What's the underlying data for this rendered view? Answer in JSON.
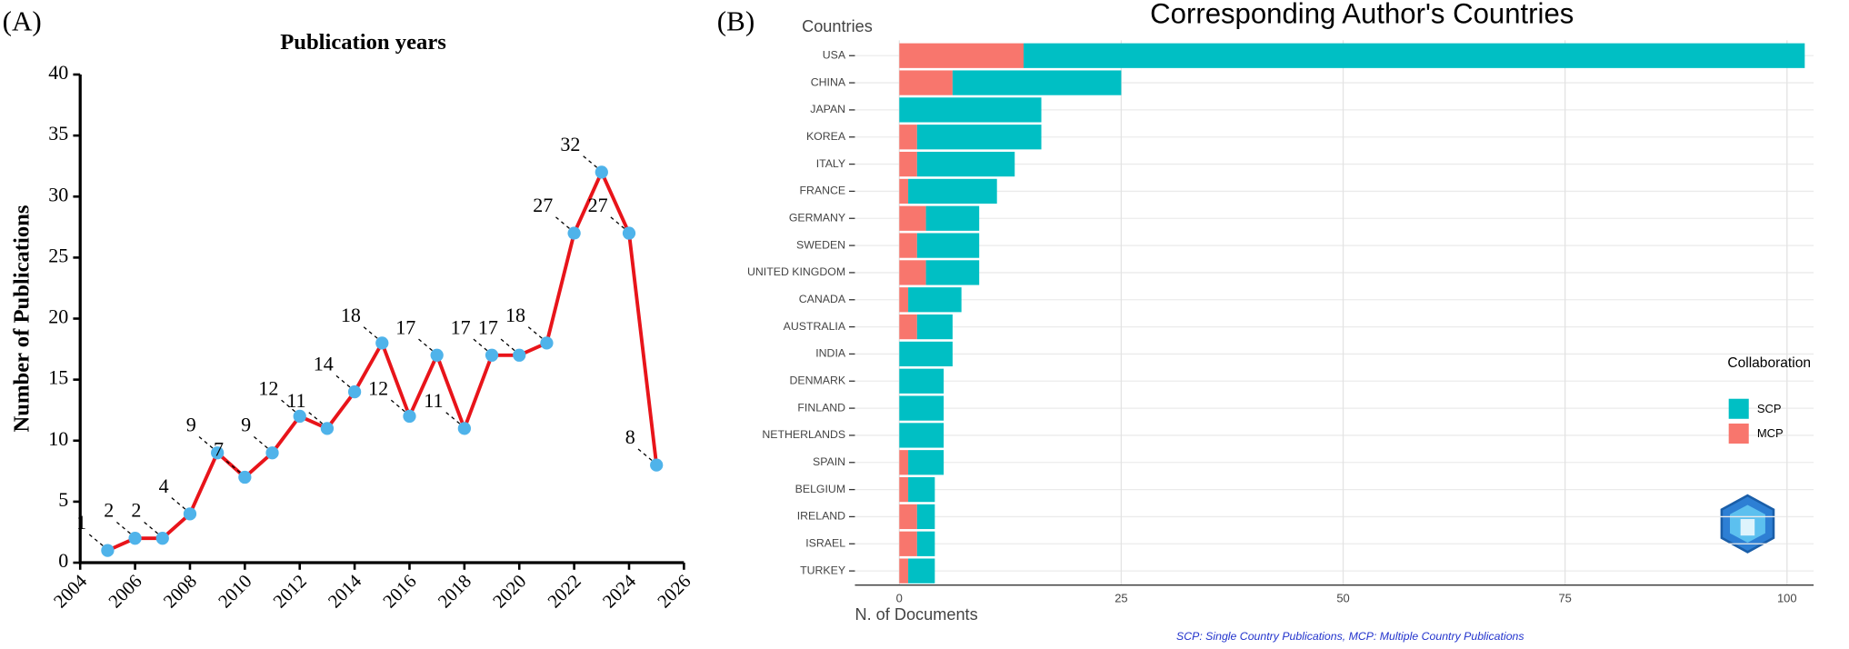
{
  "chart_data": [
    {
      "type": "line",
      "panel_label": "(A)",
      "title": "Publication years",
      "y_label": "Number of Publications",
      "x": [
        2005,
        2006,
        2007,
        2008,
        2009,
        2010,
        2011,
        2012,
        2013,
        2014,
        2015,
        2016,
        2017,
        2018,
        2019,
        2020,
        2021,
        2022,
        2023,
        2024,
        2025
      ],
      "values": [
        1,
        2,
        2,
        4,
        9,
        7,
        9,
        12,
        11,
        14,
        18,
        12,
        17,
        11,
        17,
        17,
        18,
        27,
        32,
        27,
        8
      ],
      "color": "#e8141a",
      "marker_color": "#4fb3ea",
      "xlim": [
        2004,
        2026
      ],
      "xticks": [
        2004,
        2006,
        2008,
        2010,
        2012,
        2014,
        2016,
        2018,
        2020,
        2022,
        2024,
        2026
      ],
      "ylim": [
        0,
        40
      ],
      "yticks": [
        0,
        5,
        10,
        15,
        20,
        25,
        30,
        35,
        40
      ],
      "data_labels": true
    },
    {
      "type": "stacked-barh",
      "panel_label": "(B)",
      "title": "Corresponding Author's Countries",
      "y_label": "Countries",
      "x_label": "N. of Documents",
      "caption": "SCP: Single Country Publications, MCP: Multiple Country Publications",
      "legend_title": "Collaboration",
      "legend_position": "right",
      "categories": [
        "USA",
        "CHINA",
        "JAPAN",
        "KOREA",
        "ITALY",
        "FRANCE",
        "GERMANY",
        "SWEDEN",
        "UNITED KINGDOM",
        "CANADA",
        "AUSTRALIA",
        "INDIA",
        "DENMARK",
        "FINLAND",
        "NETHERLANDS",
        "SPAIN",
        "BELGIUM",
        "IRELAND",
        "ISRAEL",
        "TURKEY"
      ],
      "series": [
        {
          "name": "SCP",
          "color": "#00BFC4",
          "values": [
            88,
            19,
            16,
            14,
            11,
            10,
            6,
            7,
            6,
            6,
            4,
            6,
            5,
            5,
            5,
            4,
            3,
            2,
            2,
            3
          ]
        },
        {
          "name": "MCP",
          "color": "#F8766D",
          "values": [
            14,
            6,
            0,
            2,
            2,
            1,
            3,
            2,
            3,
            1,
            2,
            0,
            0,
            0,
            0,
            1,
            1,
            2,
            2,
            1
          ]
        }
      ],
      "xlim": [
        -5,
        103
      ],
      "xticks": [
        0,
        25,
        50,
        75,
        100
      ],
      "grid": true
    }
  ]
}
